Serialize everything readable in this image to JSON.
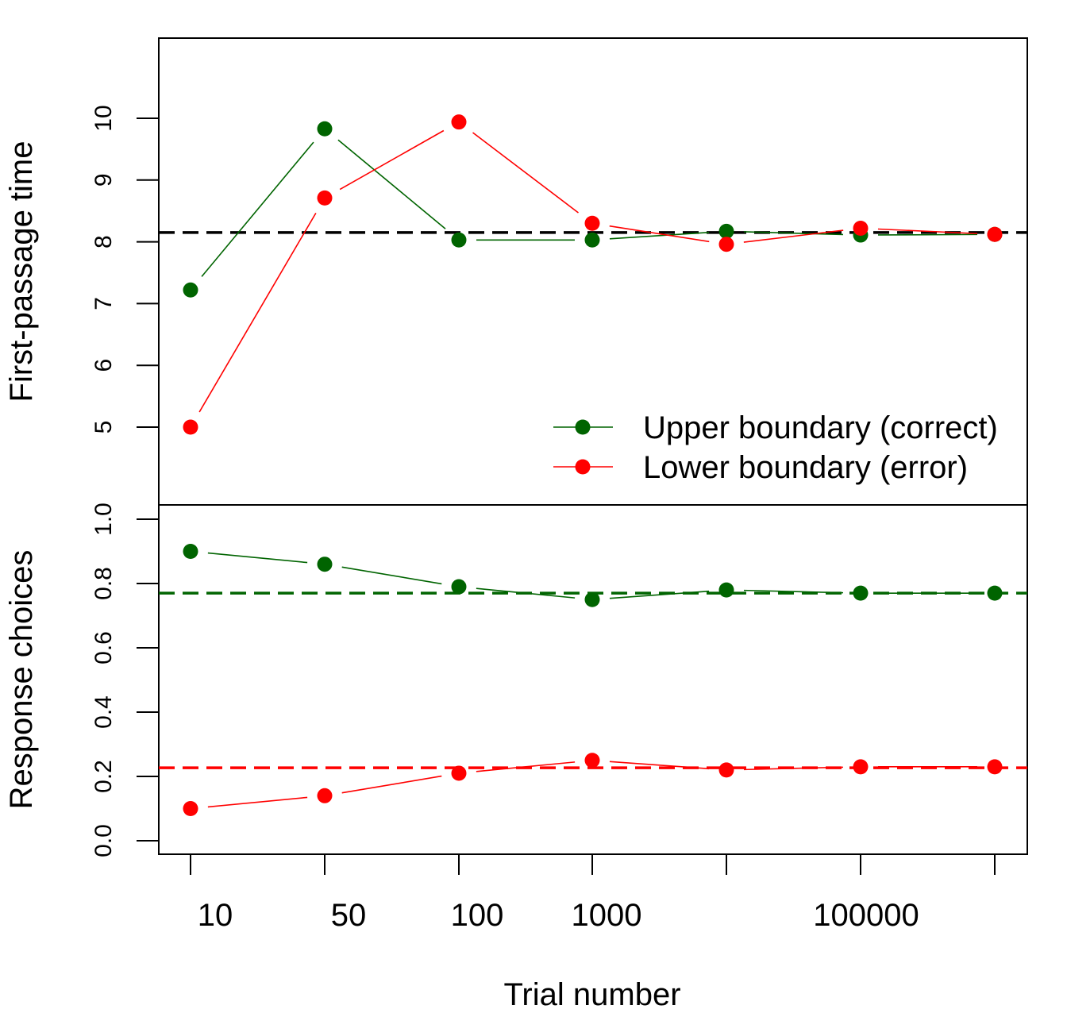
{
  "chart_data": [
    {
      "type": "line",
      "ylabel": "First-passage time",
      "ylim": [
        3.85,
        11.4
      ],
      "yticks": [
        5,
        6,
        7,
        8,
        9,
        10
      ],
      "x": [
        "10",
        "50",
        "100",
        "1000",
        "10000",
        "100000",
        "1000000"
      ],
      "series": [
        {
          "name": "Upper boundary (correct)",
          "color": "#006400",
          "values": [
            7.22,
            9.83,
            8.03,
            8.03,
            8.17,
            8.11,
            8.12
          ]
        },
        {
          "name": "Lower boundary (error)",
          "color": "#ff0000",
          "values": [
            5.0,
            8.71,
            9.94,
            8.3,
            7.96,
            8.22,
            8.12
          ]
        }
      ],
      "reference_lines": [
        {
          "value": 8.15,
          "color": "#000000",
          "style": "dashed"
        }
      ],
      "legend": {
        "placement": "bottom-right",
        "entries": [
          "Upper boundary (correct)",
          "Lower boundary (error)"
        ]
      }
    },
    {
      "type": "line",
      "ylabel": "Response choices",
      "ylim": [
        -0.04,
        1.04
      ],
      "yticks": [
        "0.0",
        "0.2",
        "0.4",
        "0.6",
        "0.8",
        "1.0"
      ],
      "x": [
        "10",
        "50",
        "100",
        "1000",
        "10000",
        "100000",
        "1000000"
      ],
      "series": [
        {
          "color": "#006400",
          "values": [
            0.9,
            0.86,
            0.79,
            0.75,
            0.78,
            0.77,
            0.77
          ]
        },
        {
          "color": "#ff0000",
          "values": [
            0.1,
            0.14,
            0.21,
            0.25,
            0.22,
            0.23,
            0.23
          ]
        }
      ],
      "reference_lines": [
        {
          "value": 0.77,
          "color": "#006400",
          "style": "dashed"
        },
        {
          "value": 0.227,
          "color": "#ff0000",
          "style": "dashed"
        }
      ],
      "xlabel": "Trial number",
      "xtick_labels": [
        "10",
        "50",
        "100",
        "1000",
        "",
        "100000",
        ""
      ]
    }
  ]
}
